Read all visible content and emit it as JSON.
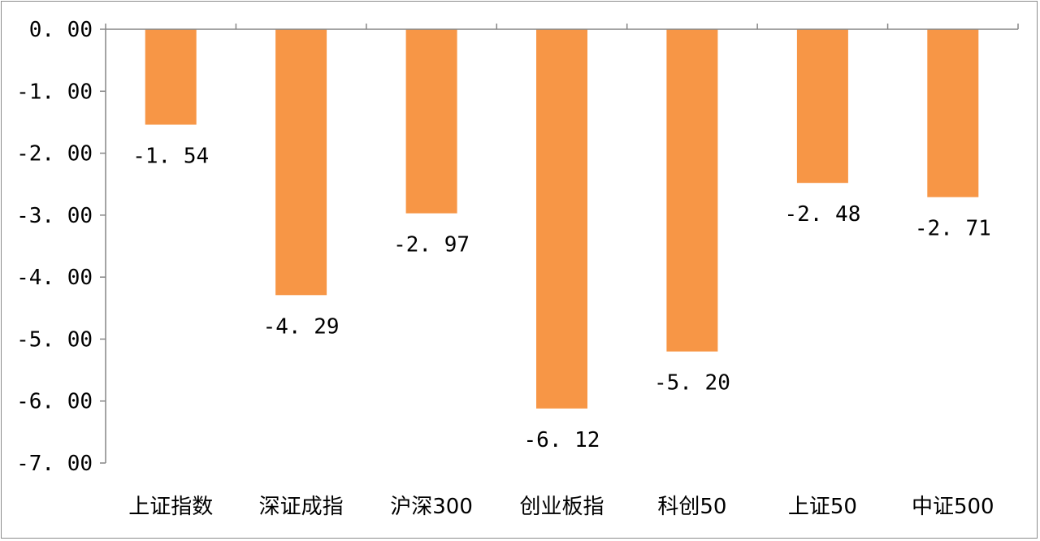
{
  "chart_data": {
    "type": "bar",
    "categories": [
      "上证指数",
      "深证成指",
      "沪深300",
      "创业板指",
      "科创50",
      "上证50",
      "中证500"
    ],
    "values": [
      -1.54,
      -4.29,
      -2.97,
      -6.12,
      -5.2,
      -2.48,
      -2.71
    ],
    "data_labels": [
      "-1. 54",
      "-4. 29",
      "-2. 97",
      "-6. 12",
      "-5. 20",
      "-2. 48",
      "-2. 71"
    ],
    "ylim": [
      -7.0,
      0.0
    ],
    "yticks": [
      0,
      -1,
      -2,
      -3,
      -4,
      -5,
      -6,
      -7
    ],
    "ytick_labels": [
      "0. 00",
      "-1. 00",
      "-2. 00",
      "-3. 00",
      "-4. 00",
      "-5. 00",
      "-6. 00",
      "-7. 00"
    ],
    "grid": false,
    "legend": "none",
    "title": "",
    "xlabel": "",
    "ylabel": "",
    "bar_color": "#F79646"
  }
}
